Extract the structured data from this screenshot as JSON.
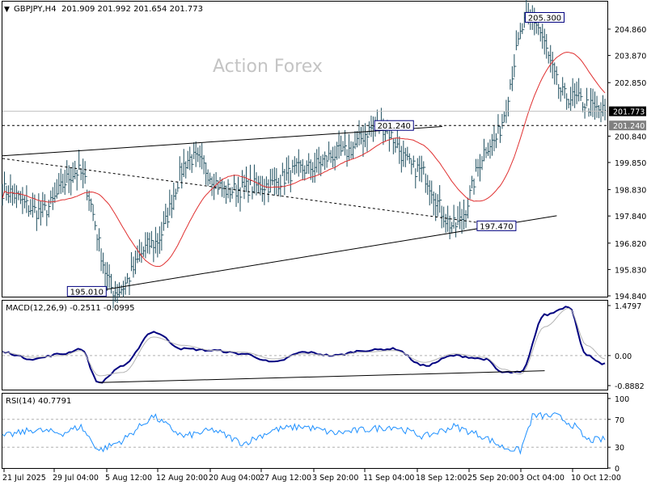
{
  "header": {
    "symbol": "GBPJPY,H4",
    "ohlc": "201.909 201.992 201.654 201.773"
  },
  "watermark": "Action Forex",
  "colors": {
    "bars": "#1f4f5f",
    "ma": "#e03030",
    "macd": "#000080",
    "signal": "#b4b4b4",
    "rsi": "#1e90ff",
    "trendline": "#000000",
    "panel_border": "#000000"
  },
  "chart_data": [
    {
      "type": "candlestick",
      "title": "GBPJPY,H4",
      "y_ticks": [
        "204.860",
        "203.870",
        "202.850",
        "201.773",
        "200.840",
        "199.850",
        "198.830",
        "197.840",
        "196.820",
        "195.830",
        "194.840"
      ],
      "ylim": [
        194.84,
        205.8
      ],
      "current_price": "201.773",
      "dotted_level": "201.240",
      "ma_overlay": "moving average (red)",
      "price_labels": [
        {
          "text": "205.300",
          "value": 205.3,
          "x_index": 0.9
        },
        {
          "text": "201.240",
          "value": 201.24,
          "x_index": 0.65
        },
        {
          "text": "197.470",
          "value": 197.47,
          "x_index": 0.82
        },
        {
          "text": "195.010",
          "value": 195.01,
          "x_index": 0.14
        }
      ],
      "swing_points": [
        {
          "date": "21 Jul 2025",
          "value": 198.8
        },
        {
          "date": "24 Jul",
          "value": 198.0
        },
        {
          "date": "29 Jul 04:00",
          "value": 199.5
        },
        {
          "date": "31 Jul",
          "value": 195.01
        },
        {
          "date": "5 Aug 12:00",
          "value": 196.8
        },
        {
          "date": "12 Aug 20:00",
          "value": 200.0
        },
        {
          "date": "20 Aug 04:00",
          "value": 198.8
        },
        {
          "date": "27 Aug 12:00",
          "value": 199.0
        },
        {
          "date": "3 Sep 20:00",
          "value": 199.6
        },
        {
          "date": "11 Sep 04:00",
          "value": 200.2
        },
        {
          "date": "18 Sep 12:00",
          "value": 201.24
        },
        {
          "date": "25 Sep 20:00",
          "value": 199.6
        },
        {
          "date": "30 Sep",
          "value": 197.47
        },
        {
          "date": "3 Oct 04:00",
          "value": 200.6
        },
        {
          "date": "7 Oct",
          "value": 205.3
        },
        {
          "date": "10 Oct 12:00",
          "value": 202.3
        },
        {
          "date": "13 Oct",
          "value": 201.77
        }
      ],
      "trendlines": [
        {
          "name": "upper channel",
          "from": [
            0.0,
            200.1
          ],
          "to": [
            0.73,
            201.2
          ]
        },
        {
          "name": "lower support",
          "from": [
            0.15,
            195.0
          ],
          "to": [
            0.92,
            197.85
          ]
        },
        {
          "name": "dashed line",
          "from": [
            0.0,
            200.0
          ],
          "to": [
            0.83,
            197.47
          ]
        }
      ]
    },
    {
      "type": "line",
      "title": "MACD(12,26,9) -0.2511 -0.0995",
      "y_ticks": [
        "1.4797",
        "0.00",
        "-0.8882"
      ],
      "ylim": [
        -0.8882,
        1.4797
      ],
      "series": [
        {
          "name": "MACD",
          "x": [
            0,
            0.05,
            0.1,
            0.13,
            0.16,
            0.2,
            0.25,
            0.3,
            0.35,
            0.4,
            0.45,
            0.5,
            0.55,
            0.6,
            0.65,
            0.7,
            0.75,
            0.8,
            0.83,
            0.86,
            0.9,
            0.94,
            0.97,
            1.0
          ],
          "values": [
            0.1,
            -0.1,
            0.05,
            0.2,
            -0.8,
            -0.3,
            0.7,
            0.2,
            0.15,
            0.05,
            -0.2,
            0.1,
            0.0,
            0.15,
            0.2,
            -0.3,
            0.0,
            -0.1,
            -0.5,
            -0.5,
            1.2,
            1.45,
            0.0,
            -0.25
          ]
        },
        {
          "name": "Signal",
          "x": [
            0,
            0.05,
            0.1,
            0.13,
            0.16,
            0.2,
            0.25,
            0.3,
            0.35,
            0.4,
            0.45,
            0.5,
            0.55,
            0.6,
            0.65,
            0.7,
            0.75,
            0.8,
            0.83,
            0.86,
            0.9,
            0.94,
            0.97,
            1.0
          ],
          "values": [
            0.1,
            -0.05,
            0.0,
            0.15,
            -0.6,
            -0.5,
            0.55,
            0.3,
            0.15,
            0.1,
            -0.1,
            0.05,
            0.0,
            0.1,
            0.15,
            -0.2,
            0.05,
            -0.05,
            -0.4,
            -0.55,
            0.85,
            1.4,
            0.3,
            -0.1
          ]
        }
      ],
      "trendline": {
        "from": [
          0.16,
          -0.8
        ],
        "to": [
          0.9,
          -0.45
        ]
      }
    },
    {
      "type": "line",
      "title": "RSI(14) 40.7791",
      "y_ticks": [
        "100",
        "70",
        "30",
        "0"
      ],
      "ylim": [
        0,
        100
      ],
      "levels": [
        70,
        30
      ],
      "series": [
        {
          "name": "RSI",
          "x": [
            0,
            0.05,
            0.1,
            0.13,
            0.16,
            0.2,
            0.25,
            0.3,
            0.35,
            0.4,
            0.45,
            0.5,
            0.55,
            0.6,
            0.65,
            0.7,
            0.75,
            0.8,
            0.83,
            0.86,
            0.88,
            0.92,
            0.95,
            0.97,
            1.0
          ],
          "values": [
            45,
            55,
            50,
            60,
            25,
            40,
            75,
            45,
            55,
            35,
            55,
            60,
            50,
            55,
            60,
            45,
            60,
            45,
            30,
            25,
            75,
            75,
            60,
            40,
            41
          ]
        }
      ]
    }
  ],
  "x_axis_labels": [
    "21 Jul 2025",
    "29 Jul 04:00",
    "5 Aug 12:00",
    "12 Aug 20:00",
    "20 Aug 04:00",
    "27 Aug 12:00",
    "3 Sep 20:00",
    "11 Sep 04:00",
    "18 Sep 12:00",
    "25 Sep 20:00",
    "3 Oct 04:00",
    "10 Oct 12:00"
  ]
}
